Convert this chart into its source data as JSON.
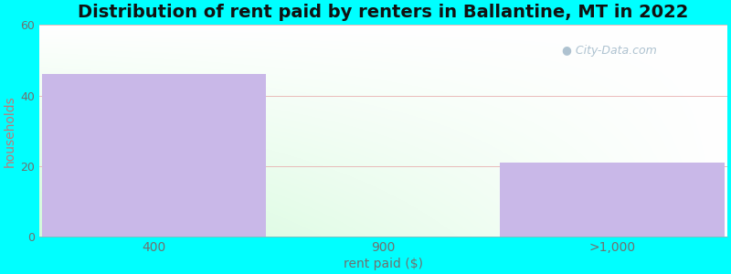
{
  "title": "Distribution of rent paid by renters in Ballantine, MT in 2022",
  "categories": [
    "400",
    "900",
    ">1,000"
  ],
  "values": [
    46,
    0,
    21
  ],
  "bar_color": "#c9b8e8",
  "bar_edgecolor": "#c9b8e8",
  "xlabel": "rent paid ($)",
  "ylabel": "households",
  "ylabel_color": "#c07878",
  "xlabel_color": "#707070",
  "tick_color": "#707070",
  "ylim": [
    0,
    60
  ],
  "yticks": [
    0,
    20,
    40,
    60
  ],
  "background_outer": "#00ffff",
  "grid_color": "#e8b0b0",
  "title_fontsize": 14,
  "axis_label_fontsize": 10,
  "watermark_text": "City-Data.com",
  "watermark_color": "#a0b8c8"
}
